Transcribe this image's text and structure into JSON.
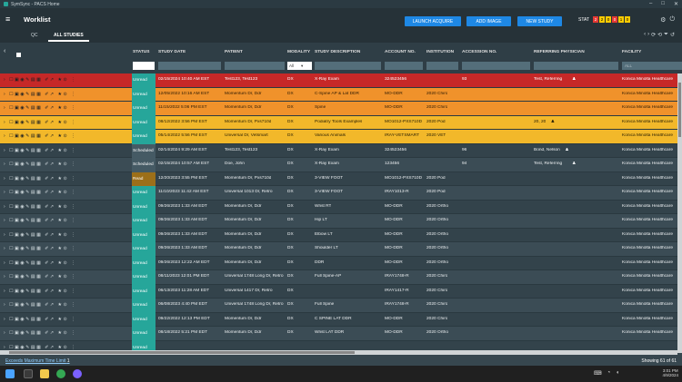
{
  "window": {
    "title": "SymSync - PACS Home"
  },
  "appbar": {
    "title": "Worklist",
    "buttons": {
      "launch": "LAUNCH ACQUIRE",
      "add_image": "ADD IMAGE",
      "new_study": "NEW STUDY"
    },
    "stat_label": "STAT",
    "stat_counts": [
      "2",
      "2",
      "0",
      "0",
      "1",
      "0"
    ]
  },
  "tabs": [
    "QC",
    "ALL STUDIES"
  ],
  "columns": {
    "status": "STATUS",
    "study_date": "STUDY DATE",
    "patient": "PATIENT",
    "modality": "MODALITY",
    "description": "STUDY DESCRIPTION",
    "account": "ACCOUNT NO.",
    "institution": "INSTITUTION",
    "accession": "ACCESSION NO.",
    "referring": "REFERRING PHYSICIAN",
    "facility": "FACILITY"
  },
  "filters": {
    "modality_value": "All",
    "facility_placeholder": "ALL"
  },
  "colors": {
    "red": "#c62828",
    "orange": "#f0922b",
    "yellow": "#f2b82a",
    "dark": "#33434b",
    "dark_alt": "#3b4c55",
    "unread": "#26a69a",
    "scheduled": "#455a64",
    "read": "#9c6f19"
  },
  "rows": [
    {
      "bg": "red",
      "status": "Unread",
      "date": "02/15/2024 10:40 AM EST",
      "patient": "Test123, Test123",
      "modality": "DX",
      "description": "X-Ray Exam",
      "account": "324523456",
      "institution": "",
      "accession": "93",
      "referring": "Test, Referring",
      "facility": "Konica Minolta Healthcare"
    },
    {
      "bg": "orange",
      "status": "Unread",
      "date": "12/05/2022 10:16 AM EST",
      "patient": "Momentum Dr, Ddr",
      "modality": "DX",
      "description": "C-Spine AP & Lat DDR",
      "account": "MO-DDR",
      "institution": "2020 Chiro",
      "accession": "",
      "referring": "",
      "facility": "Konica Minolta Healthcare"
    },
    {
      "bg": "orange",
      "status": "Unread",
      "date": "11/15/2022 5:06 PM EST",
      "patient": "Momentum Dr, Ddr",
      "modality": "DX",
      "description": "Spine",
      "account": "MO-DDR",
      "institution": "2020 Chiro",
      "accession": "",
      "referring": "",
      "facility": "Konica Minolta Healthcare"
    },
    {
      "bg": "yellow",
      "status": "Unread",
      "date": "08/12/2022 3:56 PM EST",
      "patient": "Momentum Dr, Pxs710d",
      "modality": "DX",
      "description": "Podiatry Tools Examples",
      "account": "MO1012-PXS710D",
      "institution": "2020 Pod",
      "accession": "",
      "referring": "20, 20",
      "facility": "Konica Minolta Healthcare"
    },
    {
      "bg": "yellow",
      "status": "Unread",
      "date": "05/14/2022 5:56 PM EST",
      "patient": "Universal Dr, Vetsmart",
      "modality": "DX",
      "description": "Various Animals",
      "account": "IRAY-VETSMART",
      "institution": "2020 VET",
      "accession": "",
      "referring": "",
      "facility": "Konica Minolta Healthcare"
    },
    {
      "bg": "dark",
      "status": "Scheduled",
      "date": "02/14/2024 9:29 AM EST",
      "patient": "Test123, Test123",
      "modality": "DX",
      "description": "X-Ray Exam",
      "account": "324523456",
      "institution": "",
      "accession": "96",
      "referring": "Bond, Nelson",
      "facility": "Konica Minolta Healthcare"
    },
    {
      "bg": "dark_alt",
      "status": "Scheduled",
      "date": "02/15/2024 10:57 AM EST",
      "patient": "Doe, John",
      "modality": "DX",
      "description": "X-Ray Exam",
      "account": "123456",
      "institution": "",
      "accession": "94",
      "referring": "Test, Referring",
      "facility": "Konica Minolta Healthcare"
    },
    {
      "bg": "dark",
      "status": "Read",
      "date": "12/20/2023 3:55 PM EST",
      "patient": "Momentum Dr, Pxs710d",
      "modality": "DX",
      "description": "3-VIEW FOOT",
      "account": "MO1012-PXS710D",
      "institution": "2020 Pod",
      "accession": "",
      "referring": "",
      "facility": "Konica Minolta Healthcare"
    },
    {
      "bg": "dark_alt",
      "status": "Unread",
      "date": "11/10/2023 11:42 AM EST",
      "patient": "Universal 1013 Dr, Retro",
      "modality": "DX",
      "description": "3-VIEW FOOT",
      "account": "IRAY1013-R",
      "institution": "2020 Pod",
      "accession": "",
      "referring": "",
      "facility": "Konica Minolta Healthcare"
    },
    {
      "bg": "dark",
      "status": "Unread",
      "date": "09/26/2023 1:33 AM EDT",
      "patient": "Momentum Dr, Ddr",
      "modality": "DX",
      "description": "Wrist RT",
      "account": "MO-DDR",
      "institution": "2020 Ortho",
      "accession": "",
      "referring": "",
      "facility": "Konica Minolta Healthcare"
    },
    {
      "bg": "dark_alt",
      "status": "Unread",
      "date": "09/26/2023 1:33 AM EDT",
      "patient": "Momentum Dr, Ddr",
      "modality": "DX",
      "description": "Hip LT",
      "account": "MO-DDR",
      "institution": "2020 Ortho",
      "accession": "",
      "referring": "",
      "facility": "Konica Minolta Healthcare"
    },
    {
      "bg": "dark",
      "status": "Unread",
      "date": "09/26/2023 1:33 AM EDT",
      "patient": "Momentum Dr, Ddr",
      "modality": "DX",
      "description": "Elbow LT",
      "account": "MO-DDR",
      "institution": "2020 Ortho",
      "accession": "",
      "referring": "",
      "facility": "Konica Minolta Healthcare"
    },
    {
      "bg": "dark_alt",
      "status": "Unread",
      "date": "09/26/2023 1:33 AM EDT",
      "patient": "Momentum Dr, Ddr",
      "modality": "DX",
      "description": "Shoulder LT",
      "account": "MO-DDR",
      "institution": "2020 Ortho",
      "accession": "",
      "referring": "",
      "facility": "Konica Minolta Healthcare"
    },
    {
      "bg": "dark",
      "status": "Unread",
      "date": "09/26/2023 12:22 AM EDT",
      "patient": "Momentum Dr, Ddr",
      "modality": "DX",
      "description": "DDR",
      "account": "MO-DDR",
      "institution": "2020 Ortho",
      "accession": "",
      "referring": "",
      "facility": "Konica Minolta Healthcare"
    },
    {
      "bg": "dark_alt",
      "status": "Unread",
      "date": "08/11/2023 12:01 PM EDT",
      "patient": "Universal 1748 Long Dr, Retro",
      "modality": "DX",
      "description": "Full Spine-AP",
      "account": "IRAY1748-R",
      "institution": "2020 Chiro",
      "accession": "",
      "referring": "",
      "facility": "Konica Minolta Healthcare"
    },
    {
      "bg": "dark",
      "status": "Unread",
      "date": "06/13/2023 11:28 AM EDT",
      "patient": "Universal 1417 Dr, Retro",
      "modality": "DX",
      "description": "",
      "account": "IRAY1417-R",
      "institution": "2020 Chiro",
      "accession": "",
      "referring": "",
      "facility": "Konica Minolta Healthcare"
    },
    {
      "bg": "dark_alt",
      "status": "Unread",
      "date": "06/08/2023 4:40 PM EDT",
      "patient": "Universal 1748 Long Dr, Retro",
      "modality": "DX",
      "description": "Full Spine",
      "account": "IRAY1748-R",
      "institution": "2020 Chiro",
      "accession": "",
      "referring": "",
      "facility": "Konica Minolta Healthcare"
    },
    {
      "bg": "dark",
      "status": "Unread",
      "date": "09/22/2022 12:13 PM EDT",
      "patient": "Momentum Dr, Ddr",
      "modality": "DX",
      "description": "C SPINE LAT DDR",
      "account": "MO-DDR",
      "institution": "2020 Chiro",
      "accession": "",
      "referring": "",
      "facility": "Konica Minolta Healthcare"
    },
    {
      "bg": "dark_alt",
      "status": "Unread",
      "date": "08/18/2022 5:21 PM EDT",
      "patient": "Momentum Dr, Ddr",
      "modality": "DX",
      "description": "Wrist LAT DDR",
      "account": "MO-DDR",
      "institution": "2020 Ortho",
      "accession": "",
      "referring": "",
      "facility": "Konica Minolta Healthcare"
    },
    {
      "bg": "dark",
      "status": "Unread",
      "date": "",
      "patient": "",
      "modality": "",
      "description": "",
      "account": "",
      "institution": "",
      "accession": "",
      "referring": "",
      "facility": ""
    }
  ],
  "footer": {
    "warning": "Exceeds Maximum Time Limit",
    "warning_count": "1",
    "showing": "Showing 61 of 61"
  },
  "taskbar": {
    "time": "3:01 PM",
    "date": "4/9/2024"
  }
}
